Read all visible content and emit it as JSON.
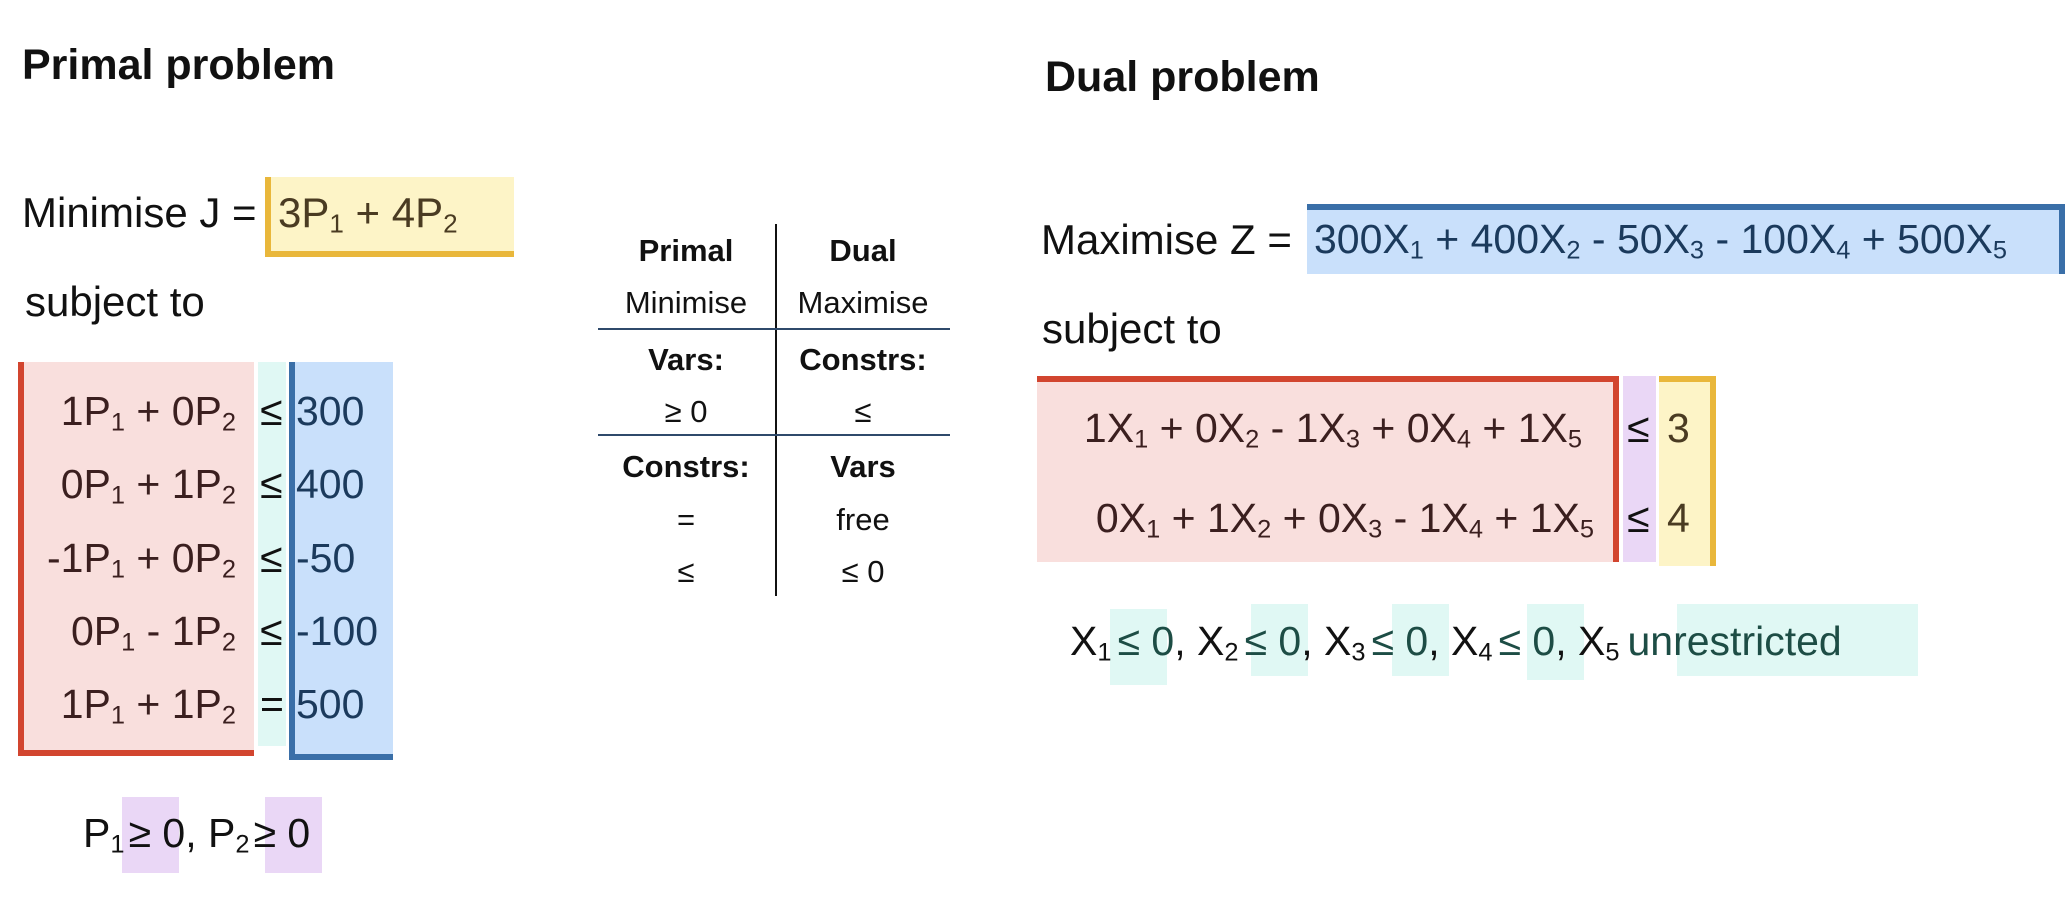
{
  "primal": {
    "heading": "Primal problem",
    "objective_label": "Minimise J =",
    "objective_expr": [
      "3P",
      "1",
      " + 4P",
      "2"
    ],
    "subject_to": "subject to",
    "constraints": [
      {
        "lhs": [
          "1P",
          "1",
          " + 0P",
          "2"
        ],
        "op": "≤",
        "rhs": "300"
      },
      {
        "lhs": [
          "0P",
          "1",
          " + 1P",
          "2"
        ],
        "op": "≤",
        "rhs": "400"
      },
      {
        "lhs": [
          "-1P",
          "1",
          " + 0P",
          "2"
        ],
        "op": "≤",
        "rhs": "-50"
      },
      {
        "lhs": [
          "0P",
          "1",
          " - 1P",
          "2"
        ],
        "op": "≤",
        "rhs": "-100"
      },
      {
        "lhs": [
          "1P",
          "1",
          " + 1P",
          "2"
        ],
        "op": "=",
        "rhs": "500"
      }
    ],
    "sign": {
      "p1": "P",
      "p1_sub": "1",
      "op1": "≥ 0",
      "sep": ", ",
      "p2": "P",
      "p2_sub": "2",
      "op2": "≥ 0"
    }
  },
  "table": {
    "col_primal": "Primal",
    "col_dual": "Dual",
    "rows": [
      {
        "left": "Minimise",
        "right": "Maximise",
        "bold": false
      },
      {
        "left": "Vars:",
        "right": "Constrs:",
        "bold": true
      },
      {
        "left": "≥ 0",
        "right": "≤",
        "bold": false
      },
      {
        "left": "Constrs:",
        "right": "Vars",
        "bold": true
      },
      {
        "left": "=",
        "right": "free",
        "bold": false
      },
      {
        "left": "≤",
        "right": "≤ 0",
        "bold": false
      }
    ]
  },
  "dual": {
    "heading": "Dual problem",
    "objective_label": "Maximise Z =",
    "objective_expr": [
      "300X",
      "1",
      " + 400X",
      "2",
      " - 50X",
      "3",
      " - 100X",
      "4",
      " + 500X",
      "5"
    ],
    "subject_to": "subject to",
    "constraints": [
      {
        "lhs": [
          "1X",
          "1",
          " + 0X",
          "2",
          " - 1X",
          "3",
          " + 0X",
          "4",
          " + 1X",
          "5"
        ],
        "op": "≤",
        "rhs": "3"
      },
      {
        "lhs": [
          "0X",
          "1",
          " + 1X",
          "2",
          " + 0X",
          "3",
          " - 1X",
          "4",
          " + 1X",
          "5"
        ],
        "op": "≤",
        "rhs": "4"
      }
    ],
    "signs": [
      {
        "var": "X",
        "sub": "1",
        "cond": "≤ 0",
        "sep": ", "
      },
      {
        "var": "X",
        "sub": "2",
        "cond": "≤ 0",
        "sep": ", "
      },
      {
        "var": "X",
        "sub": "3",
        "cond": "≤ 0",
        "sep": ", "
      },
      {
        "var": "X",
        "sub": "4",
        "cond": "≤ 0",
        "sep": ", "
      },
      {
        "var": "X",
        "sub": "5",
        "cond": "unrestricted",
        "sep": ""
      }
    ]
  },
  "colors": {
    "objective_primal_border": "#e9b73b",
    "primal_lhs_border": "#d2452f",
    "primal_rhs_border": "#3a6fa8",
    "dual_objective_border": "#3a6fa8",
    "dual_lhs_border": "#d2452f",
    "dual_rhs_border": "#e9b73b",
    "table_rule": "#2f4a6b"
  }
}
